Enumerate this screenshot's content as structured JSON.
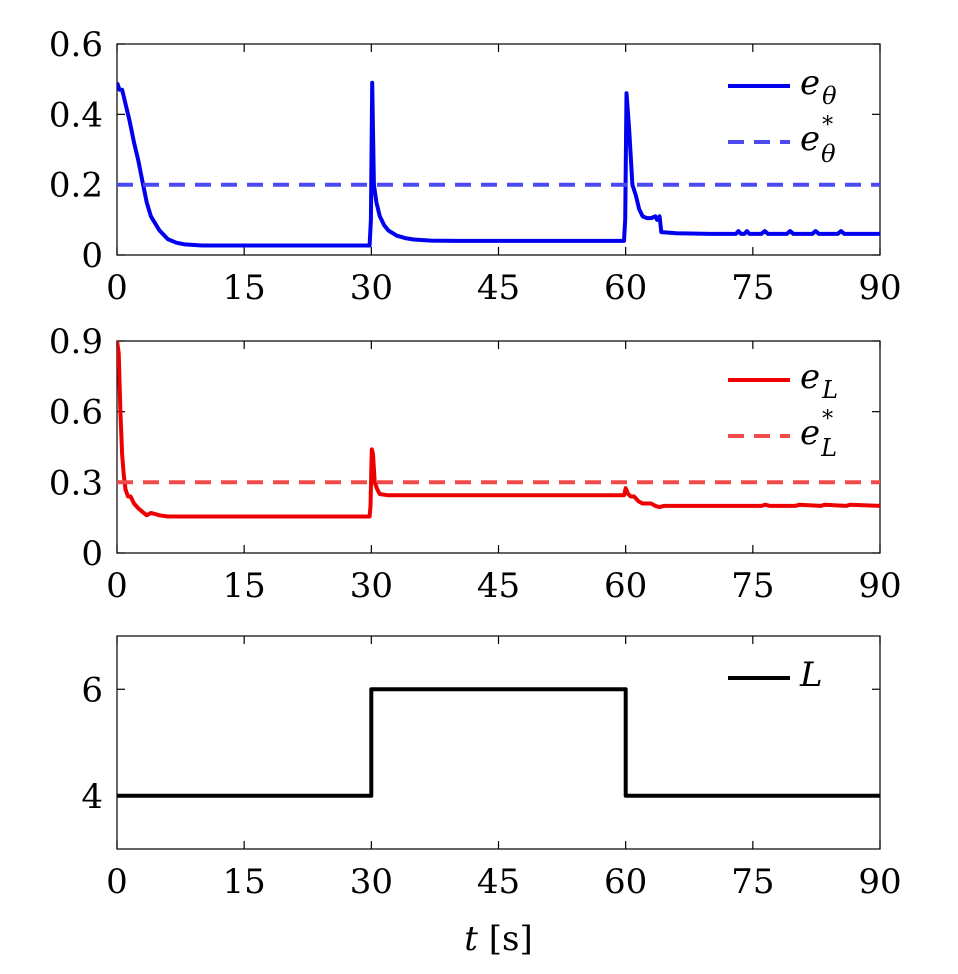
{
  "chart_data": [
    {
      "type": "line",
      "xlim": [
        0,
        90
      ],
      "ylim": [
        0,
        0.6
      ],
      "xticks": [
        "0",
        "15",
        "30",
        "45",
        "60",
        "75",
        "90"
      ],
      "yticks": [
        "0",
        "0.2",
        "0.4",
        "0.6"
      ],
      "legend_position": "top-right",
      "series": [
        {
          "legend": {
            "main": "e",
            "sub": "θ",
            "sup": ""
          },
          "style": "solid",
          "color": "#0000ee",
          "x": [
            0,
            0.3,
            0.6,
            1,
            1.5,
            2,
            2.5,
            3,
            3.5,
            4,
            5,
            6,
            7,
            8,
            10,
            29.8,
            29.95,
            30.1,
            30.3,
            30.6,
            31,
            31.5,
            32,
            33,
            34,
            35,
            37,
            40,
            59.8,
            59.95,
            60.1,
            60.4,
            60.8,
            61.2,
            61.6,
            62,
            62.5,
            63,
            63.5,
            63.7,
            64,
            64.2,
            66,
            70,
            73,
            73.3,
            73.6,
            74,
            74.3,
            74.6,
            75,
            76,
            76.4,
            76.8,
            79,
            79.4,
            79.8,
            82,
            82.4,
            82.8,
            85,
            85.4,
            85.8,
            88,
            90
          ],
          "y": [
            0.49,
            0.47,
            0.47,
            0.43,
            0.38,
            0.32,
            0.27,
            0.21,
            0.15,
            0.11,
            0.07,
            0.045,
            0.035,
            0.03,
            0.027,
            0.027,
            0.1,
            0.49,
            0.2,
            0.15,
            0.11,
            0.085,
            0.07,
            0.055,
            0.048,
            0.044,
            0.041,
            0.04,
            0.04,
            0.1,
            0.46,
            0.36,
            0.2,
            0.17,
            0.13,
            0.11,
            0.105,
            0.105,
            0.11,
            0.1,
            0.11,
            0.065,
            0.062,
            0.06,
            0.06,
            0.068,
            0.06,
            0.06,
            0.068,
            0.06,
            0.06,
            0.06,
            0.068,
            0.06,
            0.06,
            0.068,
            0.06,
            0.06,
            0.068,
            0.06,
            0.06,
            0.068,
            0.06,
            0.06,
            0.06
          ]
        },
        {
          "legend": {
            "main": "e",
            "sub": "θ",
            "sup": "*"
          },
          "style": "dashed",
          "color": "#4a4af0",
          "x": [
            0,
            90
          ],
          "y": [
            0.2,
            0.2
          ]
        }
      ]
    },
    {
      "type": "line",
      "xlim": [
        0,
        90
      ],
      "ylim": [
        0,
        0.9
      ],
      "xticks": [
        "0",
        "15",
        "30",
        "45",
        "60",
        "75",
        "90"
      ],
      "yticks": [
        "0",
        "0.3",
        "0.6",
        "0.9"
      ],
      "legend_position": "top-right",
      "series": [
        {
          "legend": {
            "main": "e",
            "sub": "L",
            "sup": ""
          },
          "style": "solid",
          "color": "#ee0000",
          "x": [
            0,
            0.2,
            0.4,
            0.6,
            0.8,
            1,
            1.3,
            1.6,
            2,
            2.5,
            3,
            3.5,
            4,
            4.5,
            5,
            6,
            10,
            29.8,
            29.9,
            30.05,
            30.2,
            30.4,
            30.7,
            31,
            32,
            40,
            59.8,
            60,
            60.3,
            60.6,
            61,
            61.5,
            62,
            63,
            63.5,
            64,
            64.5,
            65,
            70,
            76,
            76.5,
            77,
            80,
            80.5,
            83,
            83.5,
            86,
            86.5,
            90
          ],
          "y": [
            0.9,
            0.85,
            0.6,
            0.42,
            0.33,
            0.27,
            0.24,
            0.24,
            0.21,
            0.19,
            0.175,
            0.16,
            0.17,
            0.165,
            0.16,
            0.155,
            0.155,
            0.155,
            0.2,
            0.44,
            0.42,
            0.3,
            0.27,
            0.25,
            0.245,
            0.245,
            0.245,
            0.275,
            0.25,
            0.24,
            0.24,
            0.22,
            0.21,
            0.21,
            0.2,
            0.195,
            0.2,
            0.2,
            0.2,
            0.2,
            0.205,
            0.2,
            0.2,
            0.205,
            0.2,
            0.205,
            0.2,
            0.205,
            0.2
          ]
        },
        {
          "legend": {
            "main": "e",
            "sub": "L",
            "sup": "*"
          },
          "style": "dashed",
          "color": "#f04a4a",
          "x": [
            0,
            90
          ],
          "y": [
            0.3,
            0.3
          ]
        }
      ]
    },
    {
      "type": "line",
      "xlim": [
        0,
        90
      ],
      "ylim": [
        3,
        7
      ],
      "xticks": [
        "0",
        "15",
        "30",
        "45",
        "60",
        "75",
        "90"
      ],
      "yticks": [
        "4",
        "6"
      ],
      "xlabel": {
        "var": "t",
        "unit": " [s]"
      },
      "legend_position": "top-right",
      "series": [
        {
          "legend": {
            "main": "L",
            "sub": "",
            "sup": ""
          },
          "style": "solid",
          "color": "#000000",
          "x": [
            0,
            30,
            30,
            60,
            60,
            90
          ],
          "y": [
            4,
            4,
            6,
            6,
            4,
            4
          ]
        }
      ]
    }
  ]
}
